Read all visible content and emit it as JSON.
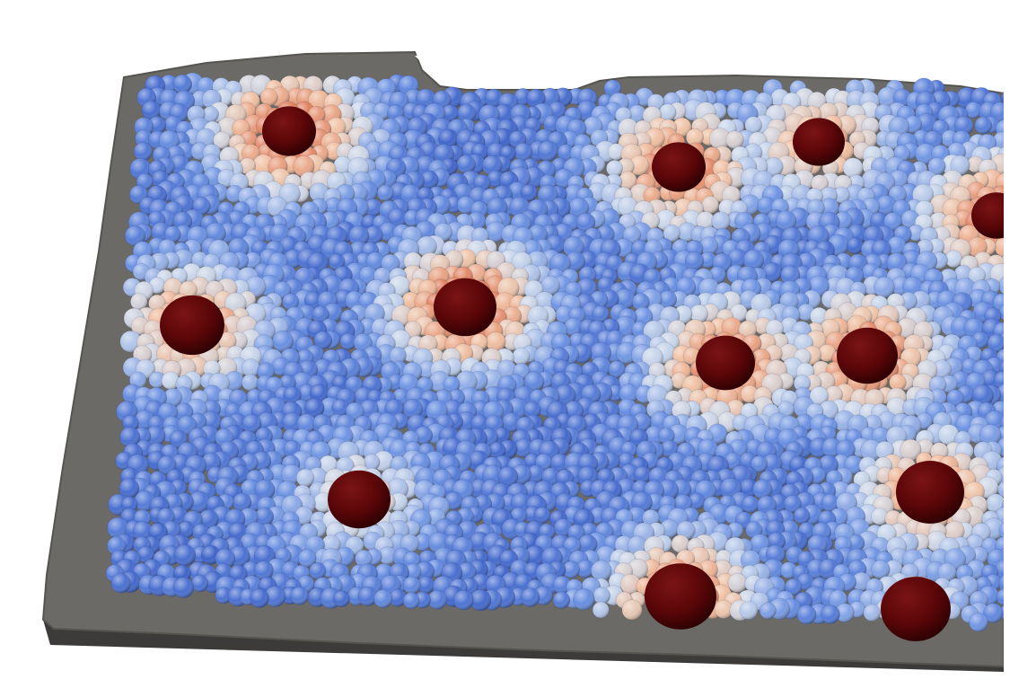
{
  "scene": {
    "description_tag": "3d-render",
    "colors": {
      "background": "#ffffff",
      "substrate": "#6b6a66",
      "substrate_edge": "#4e4d4a",
      "substrate_shadow": "#3c3b39",
      "cell_low": "#3d62c9",
      "cell_mid_low": "#6d93e3",
      "cell_mid": "#c9d6ea",
      "cell_warm": "#f0c2a4",
      "cell_hot": "#e07f5e",
      "particle": "#5a0608"
    },
    "particles": [
      {
        "id": "p1",
        "hot": 1.0
      },
      {
        "id": "p2",
        "hot": 0.9
      },
      {
        "id": "p3",
        "hot": 0.7
      },
      {
        "id": "p4",
        "hot": 0.9
      },
      {
        "id": "p5",
        "hot": 0.8
      },
      {
        "id": "p6",
        "hot": 1.0
      },
      {
        "id": "p7",
        "hot": 0.9
      },
      {
        "id": "p8",
        "hot": 0.9
      },
      {
        "id": "p9",
        "hot": 0.5
      },
      {
        "id": "p10",
        "hot": 0.8
      },
      {
        "id": "p11",
        "hot": 0.9
      },
      {
        "id": "p12",
        "hot": 0.4
      },
      {
        "id": "p13",
        "hot": 0.2
      }
    ]
  }
}
